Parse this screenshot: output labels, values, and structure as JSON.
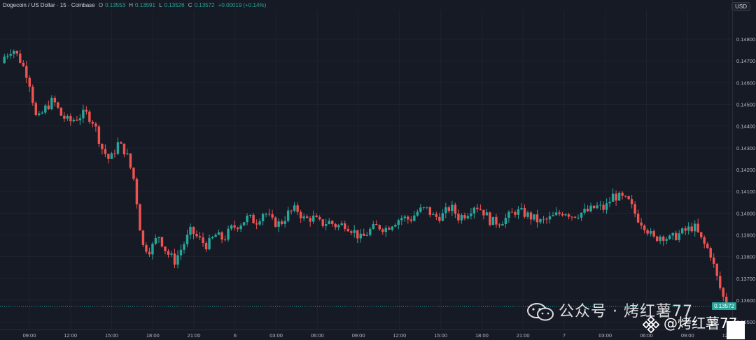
{
  "legend": {
    "symbol": "Dogecoin / US Dollar · 15 · Coinbase",
    "open_label": "O",
    "open": "0.13553",
    "high_label": "H",
    "high": "0.13591",
    "low_label": "L",
    "low": "0.13526",
    "close_label": "C",
    "close": "0.13572",
    "change": "+0.00019 (+0.14%)"
  },
  "currency_button": "USD",
  "last_price_tag": "0.13572",
  "watermark": {
    "text": "公众号 · 烤红薯77",
    "footer": "@烤红薯77",
    "icon": "wechat-icon",
    "footer_icon": "binance-logo-icon"
  },
  "colors": {
    "up": "#26a69a",
    "down": "#ef5350",
    "background": "#161a25",
    "grid": "#1f2330"
  },
  "chart_data": {
    "type": "candlestick",
    "title": "Dogecoin / US Dollar · 15 · Coinbase",
    "y_ticks": [
      "0.14800",
      "0.14700",
      "0.14600",
      "0.14500",
      "0.14400",
      "0.14300",
      "0.14200",
      "0.14100",
      "0.14000",
      "0.13900",
      "0.13800",
      "0.13700",
      "0.13600",
      "0.13500"
    ],
    "ylim": [
      0.13465,
      0.14935
    ],
    "x_ticks": [
      "09:00",
      "12:00",
      "15:00",
      "18:00",
      "21:00",
      "6",
      "03:00",
      "06:00",
      "09:00",
      "12:00",
      "15:00",
      "18:00",
      "21:00",
      "7",
      "03:00",
      "06:00",
      "09:00",
      "12:00"
    ],
    "last_price": 0.13572,
    "grid": true,
    "close_path": [
      0.1472,
      0.1476,
      0.147,
      0.1462,
      0.1442,
      0.1448,
      0.1452,
      0.1445,
      0.1442,
      0.1444,
      0.1446,
      0.1442,
      0.143,
      0.1424,
      0.1432,
      0.1428,
      0.1415,
      0.1385,
      0.1383,
      0.139,
      0.1382,
      0.1378,
      0.1385,
      0.1392,
      0.1388,
      0.1385,
      0.139,
      0.1388,
      0.1393,
      0.1395,
      0.1398,
      0.1396,
      0.1401,
      0.1396,
      0.1395,
      0.14,
      0.1402,
      0.1397,
      0.1398,
      0.1395,
      0.1396,
      0.1394,
      0.1395,
      0.1392,
      0.1388,
      0.1392,
      0.1394,
      0.1393,
      0.1396,
      0.1398,
      0.1397,
      0.1401,
      0.1402,
      0.1398,
      0.1399,
      0.1403,
      0.1398,
      0.14,
      0.1404,
      0.1401,
      0.1396,
      0.1396,
      0.1398,
      0.1401,
      0.14,
      0.1398,
      0.1396,
      0.1397,
      0.1399,
      0.1401,
      0.1399,
      0.14,
      0.1401,
      0.1403,
      0.1402,
      0.1408,
      0.1407,
      0.1405,
      0.1398,
      0.1394,
      0.1388,
      0.139,
      0.1388,
      0.139,
      0.1392,
      0.1394,
      0.1387,
      0.1382,
      0.1368,
      0.1357
    ]
  }
}
